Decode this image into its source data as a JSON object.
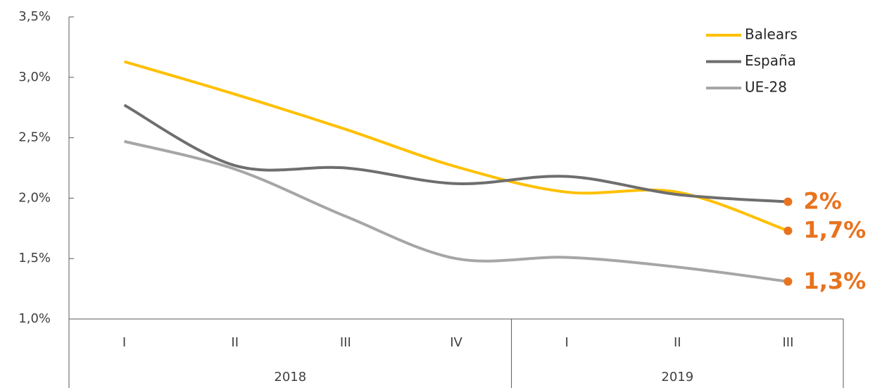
{
  "chart_data": {
    "type": "line",
    "categories": [
      "I",
      "II",
      "III",
      "IV",
      "I",
      "II",
      "III"
    ],
    "groups": [
      {
        "label": "2018",
        "count": 4
      },
      {
        "label": "2019",
        "count": 3
      }
    ],
    "series": [
      {
        "name": "Balears",
        "color": "#ffc000",
        "values": [
          3.13,
          2.86,
          2.57,
          2.26,
          2.05,
          2.05,
          1.73
        ],
        "value_labels": [
          null,
          null,
          null,
          null,
          null,
          null,
          "1,7%"
        ]
      },
      {
        "name": "España",
        "color": "#6e6e6e",
        "values": [
          2.77,
          2.27,
          2.25,
          2.12,
          2.18,
          2.03,
          1.97
        ],
        "value_labels": [
          null,
          null,
          null,
          null,
          null,
          null,
          "2%"
        ]
      },
      {
        "name": "UE-28",
        "color": "#a6a6a6",
        "values": [
          2.47,
          2.24,
          1.85,
          1.5,
          1.51,
          1.43,
          1.31
        ],
        "value_labels": [
          null,
          null,
          null,
          null,
          null,
          null,
          "1,3%"
        ]
      }
    ],
    "label_color": "#e8731e",
    "ylim": [
      1.0,
      3.5
    ],
    "yticks": [
      {
        "value": 1.0,
        "label": "1,0%"
      },
      {
        "value": 1.5,
        "label": "1,5%"
      },
      {
        "value": 2.0,
        "label": "2,0%"
      },
      {
        "value": 2.5,
        "label": "2,5%"
      },
      {
        "value": 3.0,
        "label": "3,0%"
      },
      {
        "value": 3.5,
        "label": "3,5%"
      }
    ],
    "legend": "top-right"
  }
}
